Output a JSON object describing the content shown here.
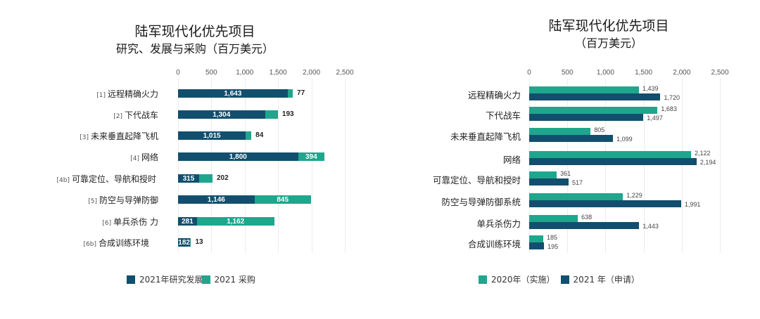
{
  "left": {
    "title": "陆军现代化优先项目",
    "subtitle": "研究、发展与采购（百万美元）",
    "ticks": [
      "0",
      "500",
      "1,000",
      "1,500",
      "2,000",
      "2,500"
    ],
    "legend": [
      {
        "label": "2021年研究发展",
        "color": "#124f6e"
      },
      {
        "label": "2021 采购",
        "color": "#1fa68d"
      }
    ],
    "rows": [
      {
        "idx": "[1]",
        "name": "远程精确火力",
        "rd": 1643,
        "rd_label": "1,643",
        "proc": 77,
        "proc_label": "77"
      },
      {
        "idx": "[2]",
        "name": "下代战车",
        "rd": 1304,
        "rd_label": "1,304",
        "proc": 193,
        "proc_label": "193"
      },
      {
        "idx": "[3]",
        "name": "未来垂直起降飞机",
        "rd": 1015,
        "rd_label": "1,015",
        "proc": 84,
        "proc_label": "84"
      },
      {
        "idx": "[4]",
        "name": "网络",
        "rd": 1800,
        "rd_label": "1,800",
        "proc": 394,
        "proc_label": "394"
      },
      {
        "idx": "[4b]",
        "name": "可靠定位、导航和授时",
        "rd": 315,
        "rd_label": "315",
        "proc": 202,
        "proc_label": "202"
      },
      {
        "idx": "[5]",
        "name": "防空与导弹防御",
        "rd": 1146,
        "rd_label": "1,146",
        "proc": 845,
        "proc_label": "845"
      },
      {
        "idx": "[6]",
        "name": "单兵杀伤  力",
        "rd": 281,
        "rd_label": "281",
        "proc": 1162,
        "proc_label": "1,162"
      },
      {
        "idx": "[6b]",
        "name": "合成训练环境",
        "rd": 182,
        "rd_label": "182",
        "proc": 13,
        "proc_label": "13"
      }
    ]
  },
  "right": {
    "title": "陆军现代化优先项目",
    "subtitle": "（百万美元）",
    "ticks": [
      "0",
      "500",
      "1,000",
      "1,500",
      "2,000",
      "2,500"
    ],
    "legend": [
      {
        "label": "2020年（实施）",
        "color": "#1fa68d"
      },
      {
        "label": "2021 年（申请）",
        "color": "#124f6e"
      }
    ],
    "rows": [
      {
        "name": "远程精确火力",
        "fy20": 1439,
        "fy20_label": "1,439",
        "fy21": 1720,
        "fy21_label": "1,720"
      },
      {
        "name": "下代战车",
        "fy20": 1683,
        "fy20_label": "1,683",
        "fy21": 1497,
        "fy21_label": "1,497"
      },
      {
        "name": "未来垂直起降飞机",
        "fy20": 805,
        "fy20_label": "805",
        "fy21": 1099,
        "fy21_label": "1,099"
      },
      {
        "name": "网络",
        "fy20": 2122,
        "fy20_label": "2,122",
        "fy21": 2194,
        "fy21_label": "2,194"
      },
      {
        "name": "可靠定位、导航和授时",
        "fy20": 361,
        "fy20_label": "361",
        "fy21": 517,
        "fy21_label": "517"
      },
      {
        "name": "防空与导弹防御系统",
        "fy20": 1229,
        "fy20_label": "1,229",
        "fy21": 1991,
        "fy21_label": "1,991"
      },
      {
        "name": "单兵杀伤力",
        "fy20": 638,
        "fy20_label": "638",
        "fy21": 1443,
        "fy21_label": "1,443"
      },
      {
        "name": "合成训练环境",
        "fy20": 185,
        "fy20_label": "185",
        "fy21": 195,
        "fy21_label": "195"
      }
    ]
  },
  "chart_data": [
    {
      "type": "bar",
      "orientation": "horizontal",
      "stacked": true,
      "title": "陆军现代化优先项目",
      "subtitle": "研究、发展与采购（百万美元）",
      "categories": [
        "[1] 远程精确火力",
        "[2] 下代战车",
        "[3] 未来垂直起降飞机",
        "[4] 网络",
        "[4b] 可靠定位、导航和授时",
        "[5] 防空与导弹防御",
        "[6] 单兵杀伤力",
        "[6b] 合成训练环境"
      ],
      "series": [
        {
          "name": "2021年研究发展",
          "values": [
            1643,
            1304,
            1015,
            1800,
            315,
            1146,
            281,
            182
          ]
        },
        {
          "name": "2021 采购",
          "values": [
            77,
            193,
            84,
            394,
            202,
            845,
            1162,
            13
          ]
        }
      ],
      "xlabel": "",
      "ylabel": "",
      "xlim": [
        0,
        2500
      ],
      "xticks": [
        0,
        500,
        1000,
        1500,
        2000,
        2500
      ],
      "grid": true,
      "legend_position": "bottom"
    },
    {
      "type": "bar",
      "orientation": "horizontal",
      "stacked": false,
      "title": "陆军现代化优先项目",
      "subtitle": "（百万美元）",
      "categories": [
        "远程精确火力",
        "下代战车",
        "未来垂直起降飞机",
        "网络",
        "可靠定位、导航和授时",
        "防空与导弹防御系统",
        "单兵杀伤力",
        "合成训练环境"
      ],
      "series": [
        {
          "name": "2020年（实施）",
          "values": [
            1439,
            1683,
            805,
            2122,
            361,
            1229,
            638,
            185
          ]
        },
        {
          "name": "2021 年（申请）",
          "values": [
            1720,
            1497,
            1099,
            2194,
            517,
            1991,
            1443,
            195
          ]
        }
      ],
      "xlabel": "",
      "ylabel": "",
      "xlim": [
        0,
        2500
      ],
      "xticks": [
        0,
        500,
        1000,
        1500,
        2000,
        2500
      ],
      "grid": true,
      "legend_position": "bottom"
    }
  ]
}
